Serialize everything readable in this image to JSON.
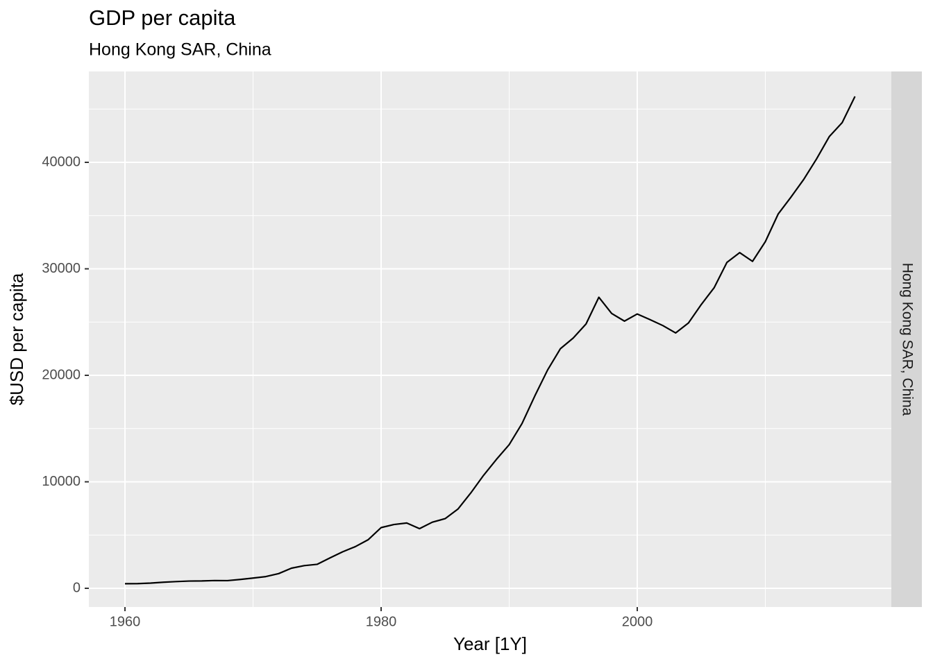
{
  "chart_data": {
    "type": "line",
    "title": "GDP per capita",
    "subtitle": "Hong Kong SAR, China",
    "x_label": "Year [1Y]",
    "y_label": "$USD per capita",
    "facet_label": "Hong Kong SAR, China",
    "x": [
      1960,
      1961,
      1962,
      1963,
      1964,
      1965,
      1966,
      1967,
      1968,
      1969,
      1970,
      1971,
      1972,
      1973,
      1974,
      1975,
      1976,
      1977,
      1978,
      1979,
      1980,
      1981,
      1982,
      1983,
      1984,
      1985,
      1986,
      1987,
      1988,
      1989,
      1990,
      1991,
      1992,
      1993,
      1994,
      1995,
      1996,
      1997,
      1998,
      1999,
      2000,
      2001,
      2002,
      2003,
      2004,
      2005,
      2006,
      2007,
      2008,
      2009,
      2010,
      2011,
      2012,
      2013,
      2014,
      2015,
      2016,
      2017
    ],
    "values": [
      430,
      440,
      490,
      570,
      630,
      680,
      690,
      730,
      720,
      830,
      960,
      1100,
      1380,
      1890,
      2130,
      2250,
      2850,
      3430,
      3920,
      4570,
      5700,
      5990,
      6130,
      5600,
      6210,
      6540,
      7440,
      8950,
      10610,
      12100,
      13490,
      15470,
      18060,
      20500,
      22500,
      23500,
      24820,
      27330,
      25810,
      25090,
      25760,
      25230,
      24670,
      23980,
      24920,
      26650,
      28220,
      30600,
      31520,
      30700,
      32550,
      35140,
      36730,
      38400,
      40320,
      42430,
      43730,
      46190
    ],
    "color": "#000000",
    "xlim": [
      1957.18,
      2019.84
    ],
    "xticks": [
      1960,
      1980,
      2000
    ],
    "x_minor_breaks": [
      1970,
      1990,
      2010
    ],
    "ylim": [
      -1759,
      48534
    ],
    "yticks": [
      0,
      10000,
      20000,
      30000,
      40000
    ],
    "y_minor_breaks": [
      5000,
      15000,
      25000,
      35000,
      45000
    ],
    "grid": true
  }
}
